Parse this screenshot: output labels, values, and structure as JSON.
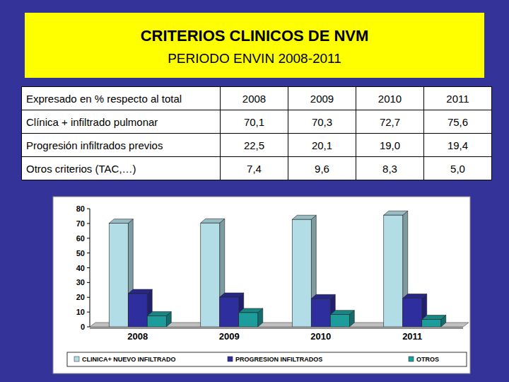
{
  "header": {
    "title": "CRITERIOS CLINICOS DE NVM",
    "subtitle": "PERIODO ENVIN 2008-2011"
  },
  "table": {
    "header": [
      "Expresado en % respecto al total",
      "2008",
      "2009",
      "2010",
      "2011"
    ],
    "rows": [
      [
        "Clínica + infiltrado pulmonar",
        "70,1",
        "70,3",
        "72,7",
        "75,6"
      ],
      [
        "Progresión infiltrados previos",
        "22,5",
        "20,1",
        "19,0",
        "19,4"
      ],
      [
        "Otros criterios (TAC,…)",
        "7,4",
        "9,6",
        "8,3",
        "5,0"
      ]
    ]
  },
  "chart_data": {
    "type": "bar",
    "categories": [
      "2008",
      "2009",
      "2010",
      "2011"
    ],
    "series": [
      {
        "name": "CLINICA+ NUEVO INFILTRADO",
        "color": "#b3dde6",
        "values": [
          70.1,
          70.3,
          72.7,
          75.6
        ]
      },
      {
        "name": "PROGRESION INFILTRADOS",
        "color": "#2e2e9e",
        "values": [
          22.5,
          20.1,
          19.0,
          19.4
        ]
      },
      {
        "name": "OTROS",
        "color": "#1d9c9c",
        "values": [
          7.4,
          9.6,
          8.3,
          5.0
        ]
      }
    ],
    "ylim": [
      0,
      80
    ],
    "yticks": [
      0,
      10,
      20,
      30,
      40,
      50,
      60,
      70,
      80
    ],
    "grid": false,
    "legend": "bottom"
  }
}
